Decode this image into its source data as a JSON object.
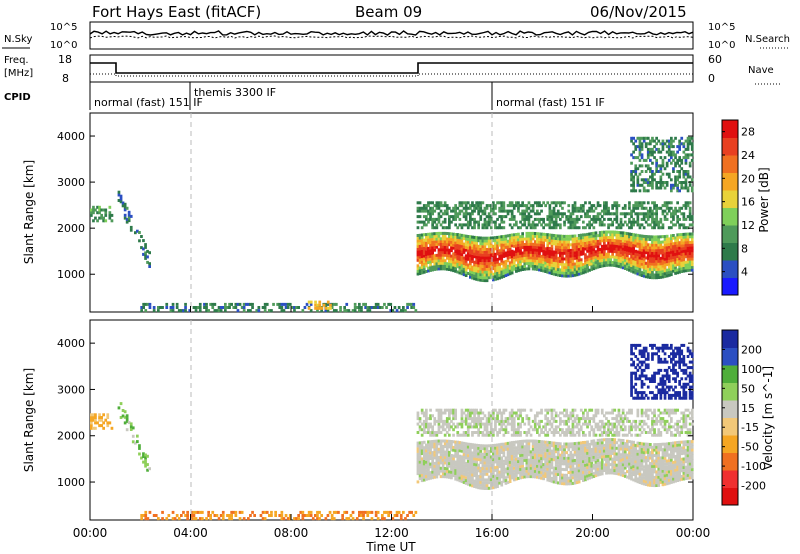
{
  "header": {
    "title": "Fort Hays East (fitACF)",
    "beam": "Beam 09",
    "date": "06/Nov/2015"
  },
  "noise_panel": {
    "left_label": "N.Sky",
    "right_label": "N.Search",
    "left_ticks": [
      "10^5",
      "10^0"
    ],
    "right_ticks": [
      "10^5",
      "10^0"
    ]
  },
  "freq_panel": {
    "left_label_1": "Freq.",
    "left_label_2": "[MHz]",
    "left_ticks": [
      "18",
      "8"
    ],
    "right_ticks": [
      "60",
      "0"
    ],
    "right_label": "Nave"
  },
  "cpid_panel": {
    "label": "CPID",
    "modes": [
      {
        "name": "normal (fast) 151 IF",
        "start": 0
      },
      {
        "name": "themis 3300 IF",
        "start": 4.0
      },
      {
        "name": "normal (fast) 151 IF",
        "start": 16.0
      }
    ]
  },
  "colors": {
    "power_scale": [
      "#1a1aff",
      "#2b4fc2",
      "#2e7a4a",
      "#4f9a5a",
      "#7fcf5a",
      "#e8d23a",
      "#f5a623",
      "#f07020",
      "#e84020",
      "#e01010"
    ],
    "velocity_scale": [
      "#e01010",
      "#f03030",
      "#f07020",
      "#f5a623",
      "#f2c878",
      "#c8c8c0",
      "#8fcf5a",
      "#4fae3a",
      "#2b4fc2",
      "#1a2aa0"
    ]
  },
  "chart_data": [
    {
      "type": "heatmap",
      "name": "power-panel",
      "xlabel": "",
      "ylabel": "Slant Range [km]",
      "xlim": [
        0,
        24
      ],
      "ylim": [
        180,
        4500
      ],
      "y_ticks": [
        1000,
        2000,
        3000,
        4000
      ],
      "colorbar": {
        "label": "Power [dB]",
        "ticks": [
          4,
          8,
          12,
          16,
          20,
          24,
          28
        ],
        "range": [
          0,
          30
        ]
      },
      "features": [
        {
          "feature": "early-echoes",
          "x_range": [
            0.0,
            0.9
          ],
          "y_range": [
            2150,
            2500
          ],
          "level": 10
        },
        {
          "feature": "slanted-arc",
          "x_range": [
            1.1,
            2.4
          ],
          "y_range": [
            1250,
            2650
          ],
          "level": 7
        },
        {
          "feature": "near-range-echoes",
          "x_range": [
            2.0,
            13.0
          ],
          "y_range": [
            200,
            400
          ],
          "level": 8
        },
        {
          "feature": "patch-0900",
          "x_range": [
            8.5,
            9.6
          ],
          "y_range": [
            250,
            450
          ],
          "level": 18
        },
        {
          "feature": "main-band",
          "x_range": [
            13.0,
            24.0
          ],
          "y_range": [
            900,
            1900
          ],
          "level": 24
        },
        {
          "feature": "upper-band",
          "x_range": [
            13.0,
            24.0
          ],
          "y_range": [
            2000,
            2600
          ],
          "level": 9
        },
        {
          "feature": "late-high-echoes",
          "x_range": [
            21.5,
            24.0
          ],
          "y_range": [
            2800,
            4000
          ],
          "level": 8
        }
      ]
    },
    {
      "type": "heatmap",
      "name": "velocity-panel",
      "xlabel": "Time UT",
      "ylabel": "Slant Range [km]",
      "xlim": [
        0,
        24
      ],
      "ylim": [
        180,
        4500
      ],
      "y_ticks": [
        1000,
        2000,
        3000,
        4000
      ],
      "x_ticks": [
        "00:00",
        "04:00",
        "08:00",
        "12:00",
        "16:00",
        "20:00",
        "00:00"
      ],
      "colorbar": {
        "label": "Velocity [m s^-1]",
        "ticks": [
          -200,
          -100,
          -50,
          -15,
          15,
          50,
          100,
          200
        ]
      },
      "features": [
        {
          "feature": "early-echoes",
          "x_range": [
            0.0,
            0.9
          ],
          "y_range": [
            2150,
            2500
          ],
          "velocity": -40
        },
        {
          "feature": "slanted-arc",
          "x_range": [
            1.1,
            2.4
          ],
          "y_range": [
            1250,
            2650
          ],
          "velocity": 30
        },
        {
          "feature": "near-range-echoes",
          "x_range": [
            2.0,
            13.0
          ],
          "y_range": [
            200,
            400
          ],
          "velocity": -60
        },
        {
          "feature": "main-band",
          "x_range": [
            13.0,
            24.0
          ],
          "y_range": [
            900,
            1900
          ],
          "velocity": 0
        },
        {
          "feature": "upper-band",
          "x_range": [
            13.0,
            24.0
          ],
          "y_range": [
            2000,
            2600
          ],
          "velocity": 5
        },
        {
          "feature": "late-high-echoes",
          "x_range": [
            21.5,
            24.0
          ],
          "y_range": [
            2800,
            4000
          ],
          "velocity": 150
        }
      ]
    }
  ]
}
